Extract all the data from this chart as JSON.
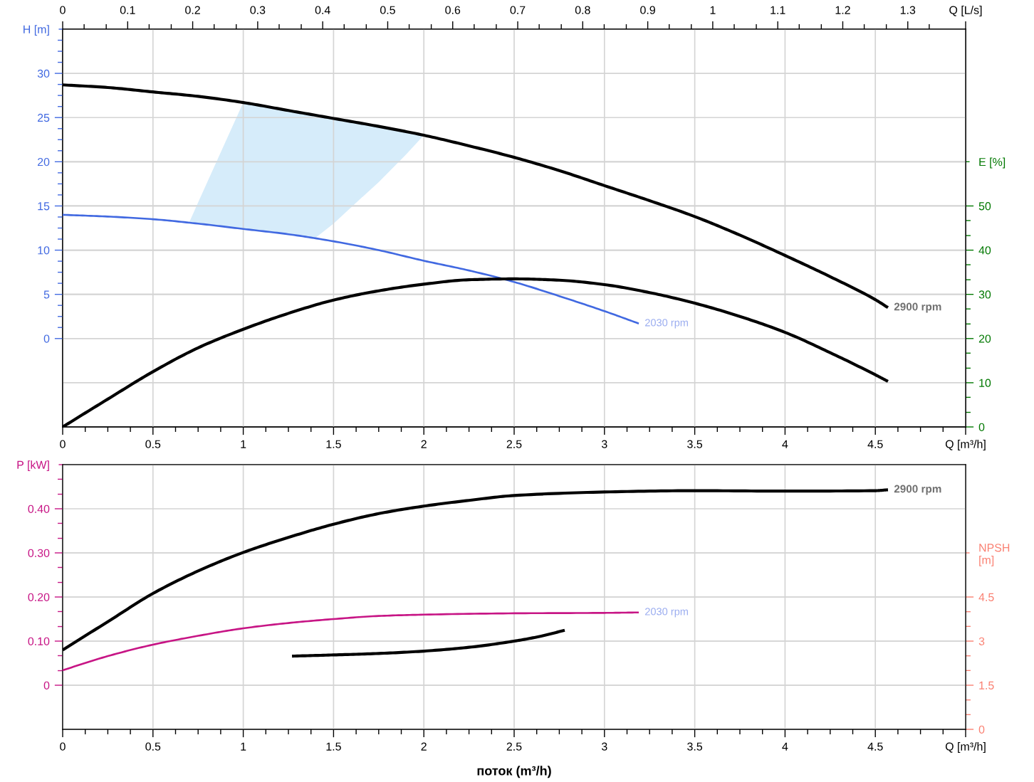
{
  "chart_data": [
    {
      "type": "line",
      "xlabel": "Q [m³/h]",
      "x2label": "Q [L/s]",
      "ylabel": "H [m]",
      "y2label": "E [%]",
      "xlim": [
        0,
        5
      ],
      "xticks": [
        0,
        0.5,
        1,
        1.5,
        2,
        2.5,
        3,
        3.5,
        4,
        4.5,
        {
          "value": 0.125,
          "label": null
        },
        {
          "value": 0.25,
          "label": null
        },
        {
          "value": 0.375,
          "label": null
        },
        {
          "value": 0.625,
          "label": null
        },
        {
          "value": 0.75,
          "label": null
        },
        {
          "value": 0.875,
          "label": null
        },
        {
          "value": 1.125,
          "label": null
        },
        {
          "value": 1.25,
          "label": null
        },
        {
          "value": 1.375,
          "label": null
        },
        {
          "value": 1.625,
          "label": null
        },
        {
          "value": 1.75,
          "label": null
        },
        {
          "value": 1.875,
          "label": null
        },
        {
          "value": 2.125,
          "label": null
        },
        {
          "value": 2.25,
          "label": null
        },
        {
          "value": 2.375,
          "label": null
        },
        {
          "value": 2.625,
          "label": null
        },
        {
          "value": 2.75,
          "label": null
        },
        {
          "value": 2.875,
          "label": null
        },
        {
          "value": 3.125,
          "label": null
        },
        {
          "value": 3.25,
          "label": null
        },
        {
          "value": 3.375,
          "label": null
        },
        {
          "value": 3.625,
          "label": null
        },
        {
          "value": 3.75,
          "label": null
        },
        {
          "value": 3.875,
          "label": null
        },
        {
          "value": 4.125,
          "label": null
        },
        {
          "value": 4.25,
          "label": null
        },
        {
          "value": 4.375,
          "label": null
        },
        {
          "value": 4.625,
          "label": null
        },
        {
          "value": 4.75,
          "label": null
        },
        {
          "value": 4.875,
          "label": null
        }
      ],
      "x2lim": [
        0,
        1.389
      ],
      "x2ticks": [
        0,
        0.1,
        0.2,
        0.3,
        0.4,
        0.5,
        0.6,
        0.7,
        0.8,
        0.9,
        1,
        1.1,
        1.2,
        1.3,
        {
          "value": 0.033,
          "label": null
        },
        {
          "value": 0.067,
          "label": null
        },
        {
          "value": 0.133,
          "label": null
        },
        {
          "value": 0.167,
          "label": null
        },
        {
          "value": 0.233,
          "label": null
        },
        {
          "value": 0.267,
          "label": null
        },
        {
          "value": 0.333,
          "label": null
        },
        {
          "value": 0.367,
          "label": null
        },
        {
          "value": 0.433,
          "label": null
        },
        {
          "value": 0.467,
          "label": null
        },
        {
          "value": 0.533,
          "label": null
        },
        {
          "value": 0.567,
          "label": null
        },
        {
          "value": 0.633,
          "label": null
        },
        {
          "value": 0.667,
          "label": null
        },
        {
          "value": 0.733,
          "label": null
        },
        {
          "value": 0.767,
          "label": null
        },
        {
          "value": 0.833,
          "label": null
        },
        {
          "value": 0.867,
          "label": null
        },
        {
          "value": 0.933,
          "label": null
        },
        {
          "value": 0.967,
          "label": null
        },
        {
          "value": 1.033,
          "label": null
        },
        {
          "value": 1.067,
          "label": null
        },
        {
          "value": 1.133,
          "label": null
        },
        {
          "value": 1.167,
          "label": null
        },
        {
          "value": 1.233,
          "label": null
        },
        {
          "value": 1.267,
          "label": null
        },
        {
          "value": 1.333,
          "label": null
        }
      ],
      "ylim": [
        -10,
        35
      ],
      "yticks": [
        0,
        5,
        10,
        15,
        20,
        25,
        30,
        {
          "value": 1.25,
          "label": null
        },
        {
          "value": 2.5,
          "label": null
        },
        {
          "value": 3.75,
          "label": null
        },
        {
          "value": 6.25,
          "label": null
        },
        {
          "value": 7.5,
          "label": null
        },
        {
          "value": 8.75,
          "label": null
        },
        {
          "value": 11.25,
          "label": null
        },
        {
          "value": 12.5,
          "label": null
        },
        {
          "value": 13.75,
          "label": null
        },
        {
          "value": 16.25,
          "label": null
        },
        {
          "value": 17.5,
          "label": null
        },
        {
          "value": 18.75,
          "label": null
        },
        {
          "value": 21.25,
          "label": null
        },
        {
          "value": 22.5,
          "label": null
        },
        {
          "value": 23.75,
          "label": null
        },
        {
          "value": 26.25,
          "label": null
        },
        {
          "value": 27.5,
          "label": null
        },
        {
          "value": 28.75,
          "label": null
        },
        {
          "value": 31.25,
          "label": null
        },
        {
          "value": 32.5,
          "label": null
        },
        {
          "value": 33.75,
          "label": null
        }
      ],
      "y2lim": [
        0,
        90
      ],
      "y2ticks": [
        0,
        10,
        20,
        30,
        40,
        50,
        {
          "value": 3.3,
          "label": null
        },
        {
          "value": 6.7,
          "label": null
        },
        {
          "value": 13.3,
          "label": null
        },
        {
          "value": 16.7,
          "label": null
        },
        {
          "value": 23.3,
          "label": null
        },
        {
          "value": 26.7,
          "label": null
        },
        {
          "value": 33.3,
          "label": null
        },
        {
          "value": 36.7,
          "label": null
        },
        {
          "value": 43.3,
          "label": null
        },
        {
          "value": 46.7,
          "label": null
        }
      ],
      "grid": true,
      "series": [
        {
          "color": "#d6ecfa",
          "x": [
            0.7,
            0.75,
            1,
            1.25,
            1.4,
            1.5,
            1.6,
            1.75,
            1.9,
            2
          ],
          "values": [
            null,
            null,
            null,
            null,
            null,
            null,
            null,
            null,
            null,
            null
          ],
          "upper": [
            13.1,
            15.4,
            26.7,
            25.8,
            25.2,
            24.9,
            24.5,
            24.0,
            23.4,
            23.0
          ],
          "lower": [
            13.1,
            13.0,
            12.4,
            11.8,
            11.4,
            13.0,
            14.9,
            17.7,
            20.8,
            23.0
          ]
        },
        {
          "name": "2900 rpm",
          "color": "#000000",
          "x": [
            0,
            0.25,
            0.5,
            0.75,
            1,
            1.25,
            1.5,
            1.75,
            2,
            2.25,
            2.5,
            2.75,
            3,
            3.25,
            3.5,
            3.75,
            4,
            4.25,
            4.5,
            4.57
          ],
          "values": [
            28.7,
            28.4,
            27.9,
            27.4,
            26.7,
            25.8,
            24.9,
            24.0,
            23.0,
            21.8,
            20.5,
            19.0,
            17.3,
            15.6,
            13.8,
            11.7,
            9.4,
            7.0,
            4.4,
            3.5
          ]
        },
        {
          "name": "2030 rpm",
          "color": "#4169e1",
          "x": [
            0,
            0.25,
            0.5,
            0.75,
            1,
            1.25,
            1.5,
            1.75,
            2,
            2.25,
            2.5,
            2.75,
            3,
            3.19
          ],
          "values": [
            14.0,
            13.8,
            13.5,
            13.0,
            12.4,
            11.8,
            11.0,
            10.0,
            8.8,
            7.7,
            6.4,
            4.8,
            3.1,
            1.7
          ]
        },
        {
          "color": "#000000",
          "axis": "y2",
          "x": [
            0,
            0.25,
            0.5,
            0.75,
            1,
            1.25,
            1.5,
            1.75,
            2,
            2.25,
            2.5,
            2.75,
            3,
            3.25,
            3.5,
            3.75,
            4,
            4.25,
            4.5,
            4.57
          ],
          "values": [
            0,
            6.3,
            12.5,
            17.9,
            22.1,
            25.7,
            28.7,
            30.8,
            32.3,
            33.3,
            33.5,
            33.2,
            32.2,
            30.4,
            28.0,
            25.0,
            21.4,
            16.8,
            11.8,
            10.3
          ]
        }
      ]
    },
    {
      "type": "line",
      "xlabel": "Q [m³/h]",
      "ylabel": "P [kW]",
      "y2label": "NPSH\n[m]",
      "annotations": [
        "поток (m³/h)"
      ],
      "xlim": [
        0,
        5
      ],
      "xticks": [
        0,
        0.5,
        1,
        1.5,
        2,
        2.5,
        3,
        3.5,
        4,
        4.5,
        {
          "value": 0.125,
          "label": null
        },
        {
          "value": 0.25,
          "label": null
        },
        {
          "value": 0.375,
          "label": null
        },
        {
          "value": 0.625,
          "label": null
        },
        {
          "value": 0.75,
          "label": null
        },
        {
          "value": 0.875,
          "label": null
        },
        {
          "value": 1.125,
          "label": null
        },
        {
          "value": 1.25,
          "label": null
        },
        {
          "value": 1.375,
          "label": null
        },
        {
          "value": 1.625,
          "label": null
        },
        {
          "value": 1.75,
          "label": null
        },
        {
          "value": 1.875,
          "label": null
        },
        {
          "value": 2.125,
          "label": null
        },
        {
          "value": 2.25,
          "label": null
        },
        {
          "value": 2.375,
          "label": null
        },
        {
          "value": 2.625,
          "label": null
        },
        {
          "value": 2.75,
          "label": null
        },
        {
          "value": 2.875,
          "label": null
        },
        {
          "value": 3.125,
          "label": null
        },
        {
          "value": 3.25,
          "label": null
        },
        {
          "value": 3.375,
          "label": null
        },
        {
          "value": 3.625,
          "label": null
        },
        {
          "value": 3.75,
          "label": null
        },
        {
          "value": 3.875,
          "label": null
        },
        {
          "value": 4.125,
          "label": null
        },
        {
          "value": 4.25,
          "label": null
        },
        {
          "value": 4.375,
          "label": null
        },
        {
          "value": 4.625,
          "label": null
        },
        {
          "value": 4.75,
          "label": null
        },
        {
          "value": 4.875,
          "label": null
        }
      ],
      "ylim": [
        -0.1,
        0.5
      ],
      "yticks": [
        0,
        {
          "value": 0.1,
          "label": "0.10"
        },
        {
          "value": 0.2,
          "label": "0.20"
        },
        {
          "value": 0.3,
          "label": "0.30"
        },
        {
          "value": 0.4,
          "label": "0.40"
        },
        {
          "value": 0.033,
          "label": null
        },
        {
          "value": 0.067,
          "label": null
        },
        {
          "value": 0.133,
          "label": null
        },
        {
          "value": 0.167,
          "label": null
        },
        {
          "value": 0.233,
          "label": null
        },
        {
          "value": 0.267,
          "label": null
        },
        {
          "value": 0.333,
          "label": null
        },
        {
          "value": 0.367,
          "label": null
        },
        {
          "value": 0.433,
          "label": null
        },
        {
          "value": 0.467,
          "label": null
        }
      ],
      "y2lim": [
        0,
        9
      ],
      "y2ticks": [
        0,
        1.5,
        3,
        4.5,
        {
          "value": 0.5,
          "label": null
        },
        {
          "value": 1,
          "label": null
        },
        {
          "value": 2,
          "label": null
        },
        {
          "value": 2.5,
          "label": null
        },
        {
          "value": 3.5,
          "label": null
        },
        {
          "value": 4,
          "label": null
        }
      ],
      "grid": true,
      "series": [
        {
          "name": "2900 rpm",
          "color": "#000000",
          "x": [
            0,
            0.25,
            0.5,
            0.75,
            1,
            1.25,
            1.5,
            1.75,
            2,
            2.25,
            2.5,
            3,
            3.5,
            4,
            4.5,
            4.57
          ],
          "values": [
            0.08,
            0.144,
            0.208,
            0.259,
            0.301,
            0.335,
            0.365,
            0.389,
            0.406,
            0.419,
            0.43,
            0.438,
            0.441,
            0.44,
            0.441,
            0.443
          ]
        },
        {
          "name": "2030 rpm",
          "color": "#c71585",
          "x": [
            0,
            0.25,
            0.5,
            0.75,
            1,
            1.25,
            1.5,
            1.75,
            2,
            2.5,
            3,
            3.19
          ],
          "values": [
            0.034,
            0.066,
            0.092,
            0.112,
            0.129,
            0.141,
            0.15,
            0.157,
            0.16,
            0.163,
            0.164,
            0.165
          ]
        },
        {
          "color": "#000000",
          "axis": "y2",
          "x": [
            1.27,
            1.5,
            1.75,
            2,
            2.25,
            2.5,
            2.65,
            2.78
          ],
          "values": [
            2.49,
            2.53,
            2.58,
            2.66,
            2.79,
            3.0,
            3.17,
            3.37
          ]
        }
      ]
    }
  ]
}
